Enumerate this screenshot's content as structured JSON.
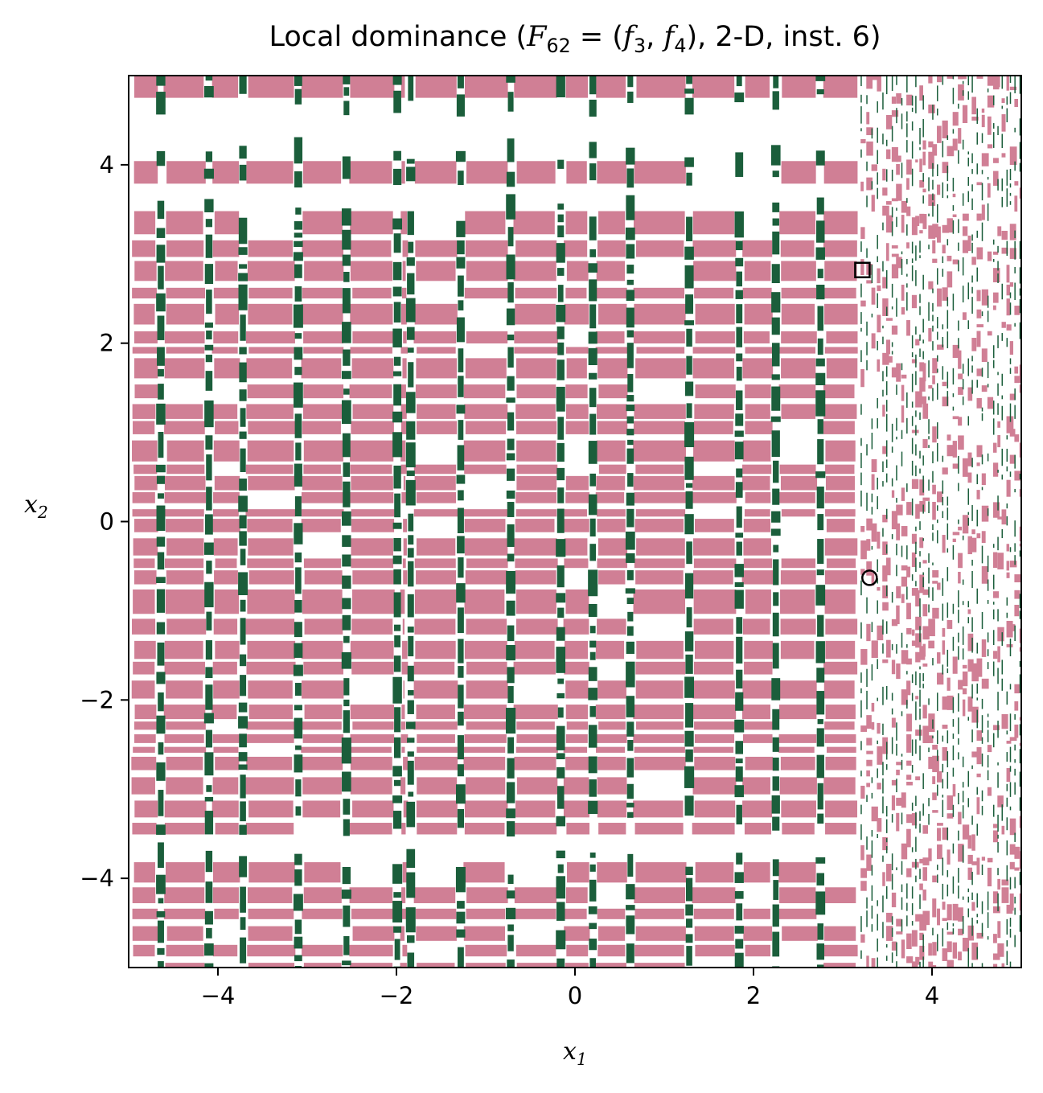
{
  "chart_data": {
    "type": "heatmap",
    "title_parts": {
      "prefix": "Local dominance (",
      "math": "F",
      "math_sub": "62",
      "eq": " = (",
      "f3": "f",
      "f3_sub": "3",
      "sep": ", ",
      "f4": "f",
      "f4_sub": "4",
      "suffix": "), 2-D, inst. 6)"
    },
    "xlabel": {
      "base": "x",
      "sub": "1"
    },
    "ylabel": {
      "base": "x",
      "sub": "2"
    },
    "xlim": [
      -5,
      5
    ],
    "ylim": [
      -5,
      5
    ],
    "xticks": [
      -4,
      -2,
      0,
      2,
      4
    ],
    "yticks": [
      -4,
      -2,
      0,
      2,
      4
    ],
    "xtick_labels": [
      "−4",
      "−2",
      "0",
      "2",
      "4"
    ],
    "ytick_labels": [
      "−4",
      "−2",
      "0",
      "2",
      "4"
    ],
    "colors": {
      "region": "#d07f95",
      "boundary": "#1b5e3b",
      "background": "#ffffff",
      "frame": "#000000"
    },
    "green_columns_x": [
      -4.64,
      -4.1,
      -3.72,
      -3.1,
      -2.56,
      -1.99,
      -1.84,
      -1.28,
      -0.72,
      -0.16,
      0.2,
      0.62,
      1.28,
      1.84,
      2.25,
      2.75
    ],
    "blank_bands_y": [
      [
        4.18,
        4.62
      ],
      [
        3.55,
        3.82
      ],
      [
        -3.72,
        -3.46
      ]
    ],
    "right_region_x_start": 3.2,
    "markers": [
      {
        "shape": "square",
        "x": 3.22,
        "y": 2.82
      },
      {
        "shape": "circle",
        "x": 3.3,
        "y": -0.63
      }
    ]
  }
}
